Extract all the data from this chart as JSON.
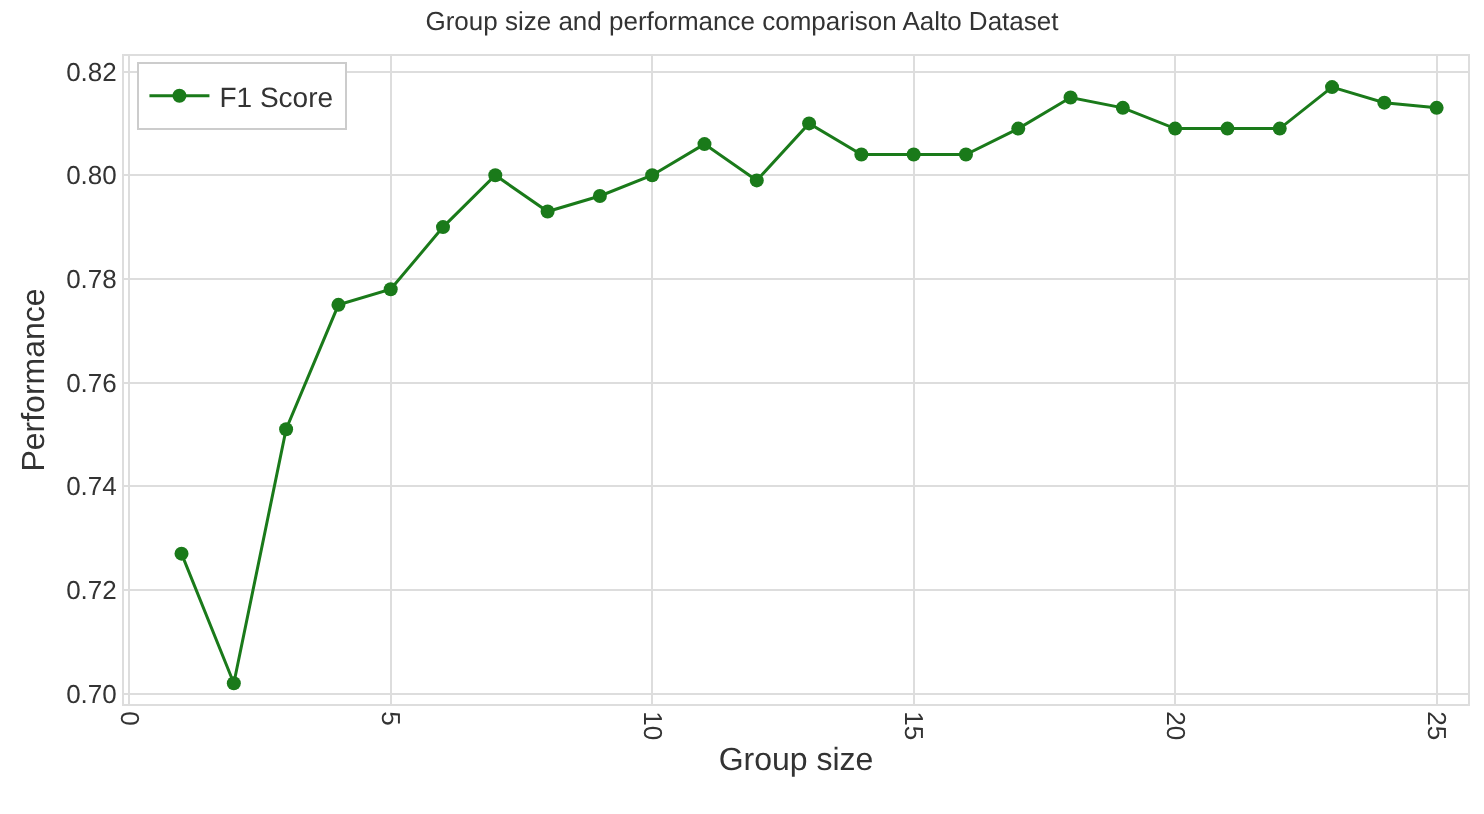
{
  "chart_data": {
    "type": "line",
    "title": "Group size and performance comparison Aalto Dataset",
    "xlabel": "Group size",
    "ylabel": "Performance",
    "x": [
      1,
      2,
      3,
      4,
      5,
      6,
      7,
      8,
      9,
      10,
      11,
      12,
      13,
      14,
      15,
      16,
      17,
      18,
      19,
      20,
      21,
      22,
      23,
      24,
      25
    ],
    "series": [
      {
        "name": "F1 Score",
        "color": "#1a7a1a",
        "values": [
          0.727,
          0.702,
          0.751,
          0.775,
          0.778,
          0.79,
          0.8,
          0.793,
          0.796,
          0.8,
          0.806,
          0.799,
          0.81,
          0.804,
          0.804,
          0.804,
          0.809,
          0.815,
          0.813,
          0.809,
          0.809,
          0.809,
          0.817,
          0.814,
          0.813
        ]
      }
    ],
    "xlim": [
      -0.1,
      25.6
    ],
    "xticks": [
      0,
      5,
      10,
      15,
      20,
      25
    ],
    "ylim": [
      0.698,
      0.823
    ],
    "yticks": [
      {
        "value": 0.7,
        "label": "0.70"
      },
      {
        "value": 0.72,
        "label": "0.72"
      },
      {
        "value": 0.74,
        "label": "0.74"
      },
      {
        "value": 0.76,
        "label": "0.76"
      },
      {
        "value": 0.78,
        "label": "0.78"
      },
      {
        "value": 0.8,
        "label": "0.80"
      },
      {
        "value": 0.82,
        "label": "0.82"
      }
    ],
    "grid": true,
    "legend": "top left",
    "marker": "circle",
    "line_style": "solid"
  }
}
